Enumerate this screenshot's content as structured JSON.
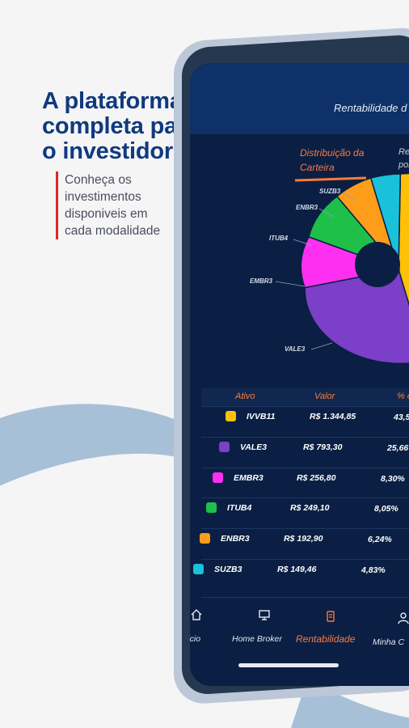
{
  "promo": {
    "title_lines": [
      "A plataforma",
      "completa para",
      "o investidor"
    ],
    "subtitle_lines": [
      "Conheça os",
      "investimentos",
      "disponiveis em",
      "cada modalidade"
    ]
  },
  "header": {
    "title": "Rentabilidade d"
  },
  "tabs": [
    {
      "label_lines": [
        "Distribuição da",
        "Carteira"
      ],
      "active": true
    },
    {
      "label_lines": [
        "Re",
        "por"
      ],
      "active": false
    }
  ],
  "chart_data": {
    "type": "pie",
    "categories": [
      "IVVB11",
      "VALE3",
      "EMBR3",
      "ITUB4",
      "ENBR3",
      "SUZB3"
    ],
    "values": [
      43.5,
      25.66,
      8.3,
      8.05,
      6.24,
      4.83
    ],
    "labels_visible": [
      "SUZB3",
      "ENBR3",
      "ITUB4",
      "EMBR3",
      "VALE3"
    ],
    "colors": [
      "#ffc107",
      "#7b3fc8",
      "#ff2ff2",
      "#1ec04a",
      "#ff9d1a",
      "#19c2da"
    ]
  },
  "table": {
    "headers": [
      "Ativo",
      "Valor",
      "% c"
    ],
    "rows": [
      {
        "asset": "IVVB11",
        "value": "R$ 1.344,85",
        "pct": "43,5",
        "color": "#ffc107"
      },
      {
        "asset": "VALE3",
        "value": "R$ 793,30",
        "pct": "25,66",
        "color": "#7b3fc8"
      },
      {
        "asset": "EMBR3",
        "value": "R$ 256,80",
        "pct": "8,30%",
        "color": "#ff2ff2"
      },
      {
        "asset": "ITUB4",
        "value": "R$ 249,10",
        "pct": "8,05%",
        "color": "#1ec04a"
      },
      {
        "asset": "ENBR3",
        "value": "R$ 192,90",
        "pct": "6,24%",
        "color": "#ff9d1a"
      },
      {
        "asset": "SUZB3",
        "value": "R$ 149,46",
        "pct": "4,83%",
        "color": "#19c2da"
      }
    ]
  },
  "nav": [
    {
      "label": "Início",
      "icon": "home-icon",
      "active": false
    },
    {
      "label": "Home Broker",
      "icon": "monitor-icon",
      "active": false
    },
    {
      "label": "Rentabilidade",
      "icon": "clipboard-icon",
      "active": true
    },
    {
      "label": "Minha C",
      "icon": "user-icon",
      "active": false
    }
  ],
  "colors": {
    "title": "#0f3a7e",
    "accent": "#ff7a3c",
    "screen_bg": "#0a1f43"
  }
}
